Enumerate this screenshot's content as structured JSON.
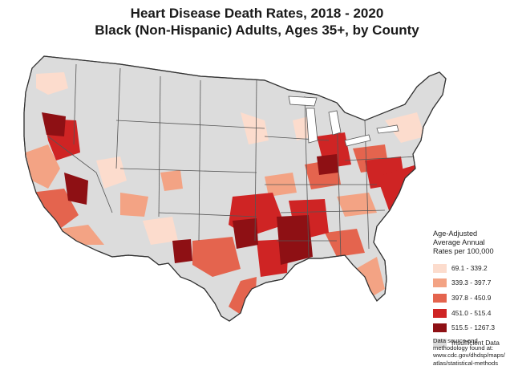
{
  "title": {
    "line1": "Heart Disease Death Rates, 2018 - 2020",
    "line2": "Black (Non-Hispanic) Adults, Ages 35+, by County"
  },
  "legend": {
    "title_lines": [
      "Age-Adjusted",
      "Average Annual",
      "Rates per 100,000"
    ],
    "classes": [
      {
        "label": "69.1 - 339.2",
        "color": "#fcdccd"
      },
      {
        "label": "339.3 - 397.7",
        "color": "#f3a384"
      },
      {
        "label": "397.8 - 450.9",
        "color": "#e4644e"
      },
      {
        "label": "451.0 - 515.4",
        "color": "#cf2424"
      },
      {
        "label": "515.5 - 1267.3",
        "color": "#8e1014"
      },
      {
        "label": "Insufficient Data",
        "color": "#dcdcdc"
      }
    ]
  },
  "source_lines": [
    "Data source and",
    "methodology found at:",
    "www.cdc.gov/dhdsp/maps/",
    "atlas/statistical-methods"
  ]
}
